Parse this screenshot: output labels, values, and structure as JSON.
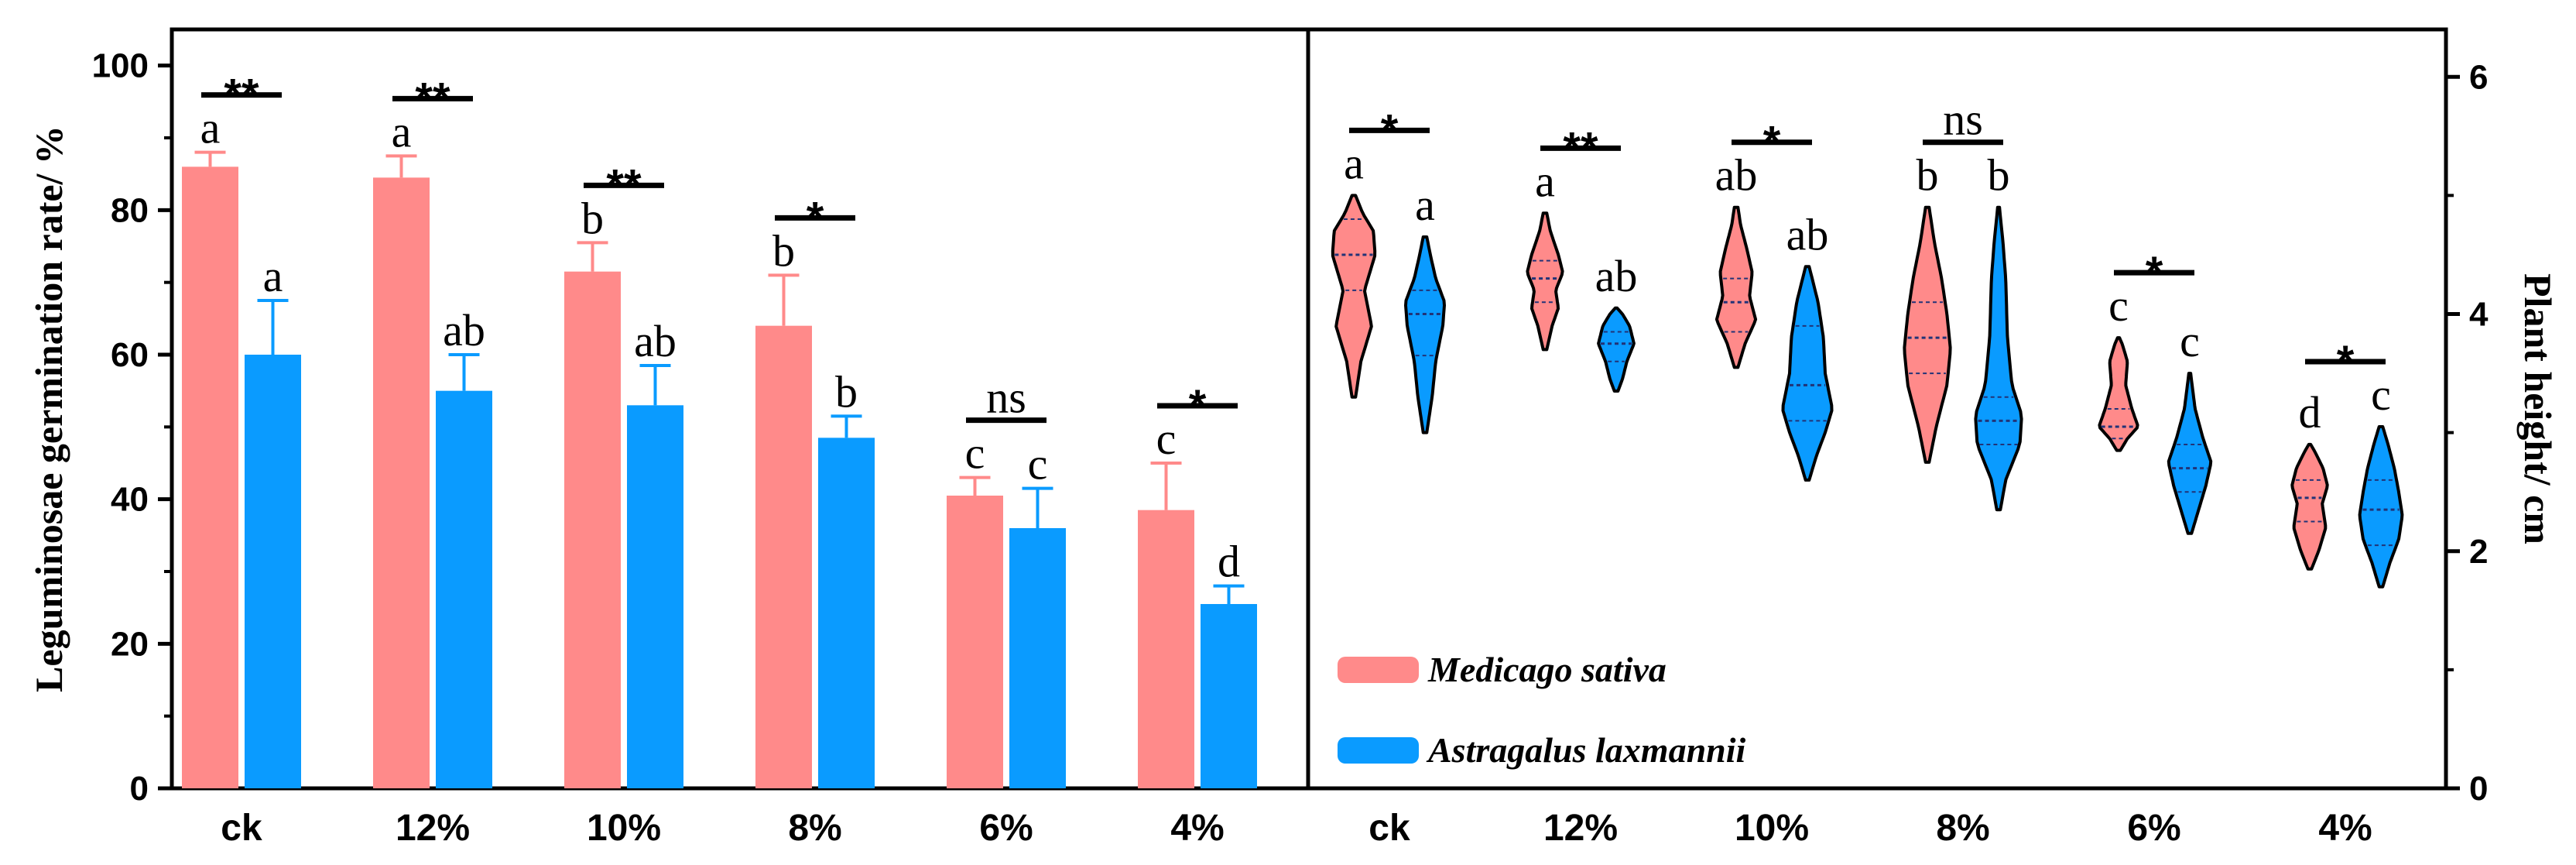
{
  "chart_data": [
    {
      "type": "bar",
      "categories": [
        "ck",
        "12%",
        "10%",
        "8%",
        "6%",
        "4%"
      ],
      "series": [
        {
          "name": "Medicago sativa",
          "color": "#FF8A8A",
          "values": [
            86,
            84.5,
            71.5,
            64,
            40.5,
            38.5
          ],
          "errors": [
            2,
            3,
            4,
            7,
            2.5,
            6.5
          ]
        },
        {
          "name": "Astragalus laxmannii",
          "color": "#0A9BFF",
          "values": [
            60,
            55,
            53,
            48.5,
            36,
            25.5
          ],
          "errors": [
            7.5,
            5,
            5.5,
            3,
            5.5,
            2.5
          ]
        }
      ],
      "letters": [
        [
          "a",
          "a"
        ],
        [
          "a",
          "ab"
        ],
        [
          "b",
          "ab"
        ],
        [
          "b",
          "b"
        ],
        [
          "c",
          "c"
        ],
        [
          "c",
          "d"
        ]
      ],
      "significance": [
        "**",
        "**",
        "**",
        "*",
        "ns",
        "*"
      ],
      "ylabel": "Leguminosae germination rate/ %",
      "ylim": [
        0,
        105
      ],
      "yticks": [
        "0",
        "20",
        "40",
        "60",
        "80",
        "100"
      ]
    },
    {
      "type": "violin",
      "categories": [
        "ck",
        "12%",
        "10%",
        "8%",
        "6%",
        "4%"
      ],
      "series": [
        {
          "name": "Medicago sativa",
          "color": "#FF8A8A",
          "violins": [
            {
              "ymin": 3.3,
              "ymax": 5.0,
              "median": 4.5,
              "q1": 4.2,
              "q3": 4.8,
              "profile": [
                [
                  3.3,
                  0.02
                ],
                [
                  3.6,
                  0.08
                ],
                [
                  3.9,
                  0.2
                ],
                [
                  4.2,
                  0.12
                ],
                [
                  4.5,
                  0.24
                ],
                [
                  4.7,
                  0.22
                ],
                [
                  4.85,
                  0.1
                ],
                [
                  5.0,
                  0.02
                ]
              ]
            },
            {
              "ymin": 3.7,
              "ymax": 4.85,
              "median": 4.3,
              "q1": 4.1,
              "q3": 4.45,
              "profile": [
                [
                  3.7,
                  0.02
                ],
                [
                  3.9,
                  0.08
                ],
                [
                  4.05,
                  0.15
                ],
                [
                  4.2,
                  0.12
                ],
                [
                  4.35,
                  0.2
                ],
                [
                  4.5,
                  0.15
                ],
                [
                  4.7,
                  0.06
                ],
                [
                  4.85,
                  0.02
                ]
              ]
            },
            {
              "ymin": 3.55,
              "ymax": 4.9,
              "median": 4.1,
              "q1": 3.85,
              "q3": 4.3,
              "profile": [
                [
                  3.55,
                  0.02
                ],
                [
                  3.75,
                  0.1
                ],
                [
                  3.95,
                  0.22
                ],
                [
                  4.15,
                  0.15
                ],
                [
                  4.35,
                  0.18
                ],
                [
                  4.55,
                  0.12
                ],
                [
                  4.75,
                  0.05
                ],
                [
                  4.9,
                  0.02
                ]
              ]
            },
            {
              "ymin": 2.75,
              "ymax": 4.9,
              "median": 3.8,
              "q1": 3.5,
              "q3": 4.1,
              "profile": [
                [
                  2.75,
                  0.02
                ],
                [
                  3.05,
                  0.1
                ],
                [
                  3.4,
                  0.22
                ],
                [
                  3.7,
                  0.26
                ],
                [
                  4.0,
                  0.22
                ],
                [
                  4.3,
                  0.16
                ],
                [
                  4.6,
                  0.08
                ],
                [
                  4.9,
                  0.02
                ]
              ]
            },
            {
              "ymin": 2.85,
              "ymax": 3.8,
              "median": 3.05,
              "q1": 2.95,
              "q3": 3.2,
              "profile": [
                [
                  2.85,
                  0.02
                ],
                [
                  2.95,
                  0.1
                ],
                [
                  3.05,
                  0.22
                ],
                [
                  3.2,
                  0.15
                ],
                [
                  3.4,
                  0.08
                ],
                [
                  3.6,
                  0.1
                ],
                [
                  3.75,
                  0.04
                ],
                [
                  3.8,
                  0.01
                ]
              ]
            },
            {
              "ymin": 1.85,
              "ymax": 2.9,
              "median": 2.45,
              "q1": 2.25,
              "q3": 2.6,
              "profile": [
                [
                  1.85,
                  0.02
                ],
                [
                  2.0,
                  0.1
                ],
                [
                  2.2,
                  0.18
                ],
                [
                  2.4,
                  0.14
                ],
                [
                  2.55,
                  0.2
                ],
                [
                  2.7,
                  0.15
                ],
                [
                  2.85,
                  0.05
                ],
                [
                  2.9,
                  0.01
                ]
              ]
            }
          ]
        },
        {
          "name": "Astragalus laxmannii",
          "color": "#0A9BFF",
          "violins": [
            {
              "ymin": 3.0,
              "ymax": 4.65,
              "median": 4.0,
              "q1": 3.65,
              "q3": 4.2,
              "profile": [
                [
                  3.0,
                  0.02
                ],
                [
                  3.3,
                  0.08
                ],
                [
                  3.6,
                  0.12
                ],
                [
                  3.9,
                  0.2
                ],
                [
                  4.1,
                  0.22
                ],
                [
                  4.3,
                  0.12
                ],
                [
                  4.5,
                  0.06
                ],
                [
                  4.65,
                  0.02
                ]
              ]
            },
            {
              "ymin": 3.35,
              "ymax": 4.05,
              "median": 3.75,
              "q1": 3.6,
              "q3": 3.85,
              "profile": [
                [
                  3.35,
                  0.02
                ],
                [
                  3.45,
                  0.07
                ],
                [
                  3.6,
                  0.12
                ],
                [
                  3.75,
                  0.2
                ],
                [
                  3.9,
                  0.15
                ],
                [
                  4.0,
                  0.07
                ],
                [
                  4.05,
                  0.01
                ]
              ]
            },
            {
              "ymin": 2.6,
              "ymax": 4.4,
              "median": 3.4,
              "q1": 3.1,
              "q3": 3.9,
              "profile": [
                [
                  2.6,
                  0.02
                ],
                [
                  2.8,
                  0.1
                ],
                [
                  3.0,
                  0.2
                ],
                [
                  3.2,
                  0.28
                ],
                [
                  3.5,
                  0.2
                ],
                [
                  3.8,
                  0.18
                ],
                [
                  4.1,
                  0.12
                ],
                [
                  4.4,
                  0.02
                ]
              ]
            },
            {
              "ymin": 2.35,
              "ymax": 4.9,
              "median": 3.1,
              "q1": 2.9,
              "q3": 3.3,
              "profile": [
                [
                  2.35,
                  0.02
                ],
                [
                  2.6,
                  0.08
                ],
                [
                  2.9,
                  0.24
                ],
                [
                  3.15,
                  0.26
                ],
                [
                  3.4,
                  0.15
                ],
                [
                  3.8,
                  0.1
                ],
                [
                  4.3,
                  0.08
                ],
                [
                  4.6,
                  0.05
                ],
                [
                  4.9,
                  0.01
                ]
              ]
            },
            {
              "ymin": 2.15,
              "ymax": 3.5,
              "median": 2.7,
              "q1": 2.5,
              "q3": 2.9,
              "profile": [
                [
                  2.15,
                  0.02
                ],
                [
                  2.35,
                  0.1
                ],
                [
                  2.55,
                  0.18
                ],
                [
                  2.75,
                  0.24
                ],
                [
                  2.95,
                  0.15
                ],
                [
                  3.2,
                  0.06
                ],
                [
                  3.5,
                  0.01
                ]
              ]
            },
            {
              "ymin": 1.7,
              "ymax": 3.05,
              "median": 2.35,
              "q1": 2.05,
              "q3": 2.6,
              "profile": [
                [
                  1.7,
                  0.02
                ],
                [
                  1.9,
                  0.1
                ],
                [
                  2.1,
                  0.2
                ],
                [
                  2.3,
                  0.24
                ],
                [
                  2.5,
                  0.2
                ],
                [
                  2.7,
                  0.15
                ],
                [
                  2.9,
                  0.08
                ],
                [
                  3.05,
                  0.02
                ]
              ]
            }
          ]
        }
      ],
      "letters": [
        [
          "a",
          "a"
        ],
        [
          "a",
          "ab"
        ],
        [
          "ab",
          "ab"
        ],
        [
          "b",
          "b"
        ],
        [
          "c",
          "c"
        ],
        [
          "d",
          "c"
        ]
      ],
      "significance": [
        "*",
        "**",
        "*",
        "ns",
        "*",
        "*"
      ],
      "ylabel": "Plant height/ cm",
      "ylim": [
        0,
        6.4
      ],
      "yticks": [
        "0",
        "2",
        "4",
        "6"
      ]
    }
  ],
  "legend": [
    {
      "label": "Medicago sativa",
      "color": "#FF8A8A"
    },
    {
      "label": "Astragalus laxmannii",
      "color": "#0A9BFF"
    }
  ]
}
